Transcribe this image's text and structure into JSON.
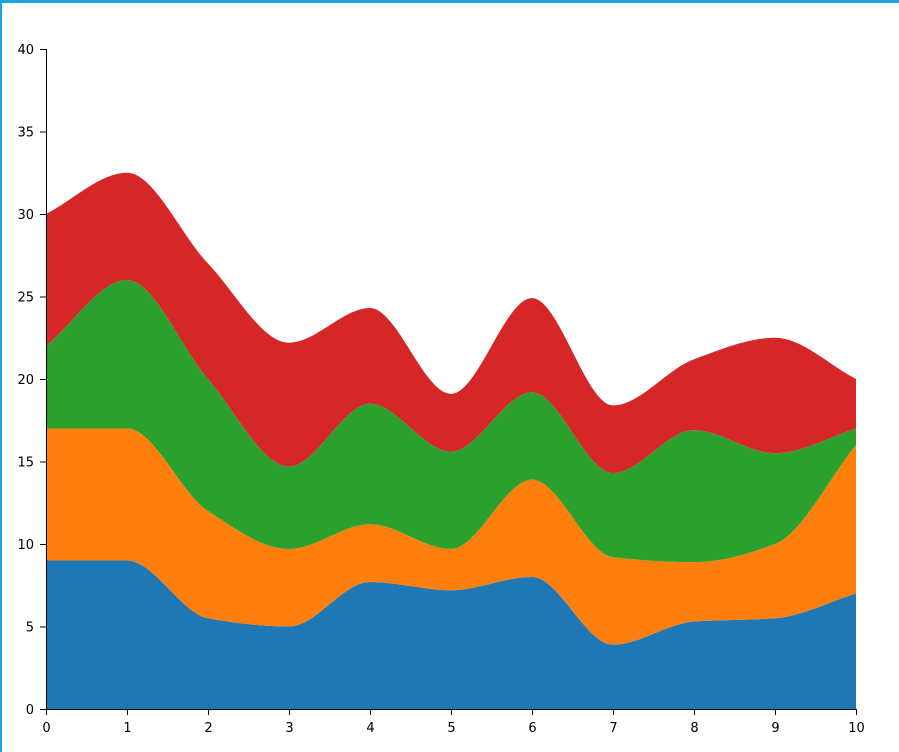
{
  "chart_data": {
    "type": "area",
    "stacked": true,
    "curve": "smooth",
    "x": [
      0,
      1,
      2,
      3,
      4,
      5,
      6,
      7,
      8,
      9,
      10
    ],
    "xlim": [
      0,
      10
    ],
    "ylim": [
      0,
      40
    ],
    "x_ticks": [
      "0",
      "1",
      "2",
      "3",
      "4",
      "5",
      "6",
      "7",
      "8",
      "9",
      "10"
    ],
    "y_ticks": [
      "0",
      "5",
      "10",
      "15",
      "20",
      "25",
      "30",
      "35",
      "40"
    ],
    "grid": false,
    "legend": "none",
    "series": [
      {
        "color": "#1f77b4",
        "values": [
          9,
          9,
          5.5,
          5,
          7.7,
          7.2,
          8,
          3.9,
          5.3,
          5.5,
          7
        ]
      },
      {
        "color": "#ff7f0e",
        "values": [
          8,
          8,
          6.5,
          4.7,
          3.5,
          2.5,
          5.9,
          5.3,
          3.6,
          4.5,
          9
        ]
      },
      {
        "color": "#2ca02c",
        "values": [
          5,
          9,
          8,
          5,
          7.3,
          5.9,
          5.3,
          5.1,
          8,
          5.5,
          1
        ]
      },
      {
        "color": "#d62728",
        "values": [
          8,
          6.5,
          7,
          7.5,
          5.8,
          3.5,
          5.7,
          4.1,
          4.3,
          7,
          3
        ]
      }
    ]
  }
}
